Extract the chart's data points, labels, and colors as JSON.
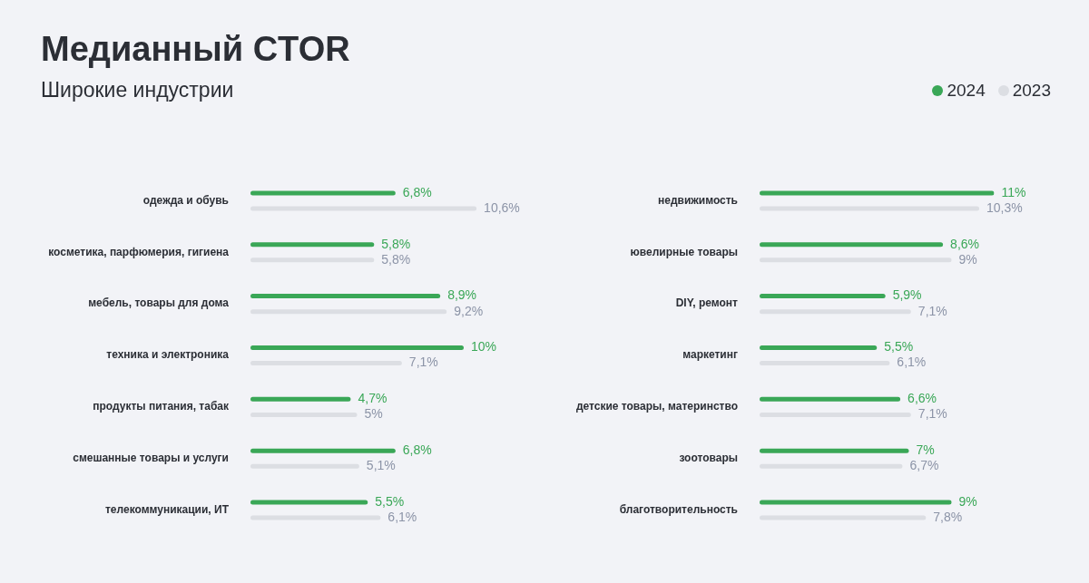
{
  "chart_data": [
    {
      "type": "bar",
      "orientation": "horizontal",
      "title": "Медианный CTOR",
      "subtitle": "Широкие индустрии",
      "categories": [
        "одежда и обувь",
        "косметика, парфюмерия, гигиена",
        "мебель, товары для дома",
        "техника и электроника",
        "продукты питания, табак",
        "смешанные товары и услуги",
        "телекоммуникации, ИТ"
      ],
      "series": [
        {
          "color": "#3aa757",
          "values": [
            6.8,
            5.8,
            8.9,
            10,
            4.7,
            6.8,
            5.5
          ],
          "value_labels": [
            "6,8%",
            "5,8%",
            "8,9%",
            "10%",
            "4,7%",
            "6,8%",
            "5,5%"
          ]
        },
        {
          "color": "#dcdee3",
          "values": [
            10.6,
            5.8,
            9.2,
            7.1,
            5,
            5.1,
            6.1
          ],
          "value_labels": [
            "10,6%",
            "5,8%",
            "9,2%",
            "7,1%",
            "5%",
            "5,1%",
            "6,1%"
          ]
        }
      ]
    },
    {
      "type": "bar",
      "orientation": "horizontal",
      "legend": "top right",
      "categories": [
        "недвижимость",
        "ювелирные товары",
        "DIY, ремонт",
        "маркетинг",
        "детские товары, материнство",
        "зоотовары",
        "благотворительность"
      ],
      "series": [
        {
          "name": "2024",
          "color": "#3aa757",
          "values": [
            11,
            8.6,
            5.9,
            5.5,
            6.6,
            7,
            9
          ],
          "value_labels": [
            "11%",
            "8,6%",
            "5,9%",
            "5,5%",
            "6,6%",
            "7%",
            "9%"
          ]
        },
        {
          "name": "2023",
          "color": "#dcdee3",
          "values": [
            10.3,
            9,
            7.1,
            6.1,
            7.1,
            6.7,
            7.8
          ],
          "value_labels": [
            "10,3%",
            "9%",
            "7,1%",
            "6,1%",
            "7,1%",
            "6,7%",
            "7,8%"
          ]
        }
      ]
    }
  ]
}
